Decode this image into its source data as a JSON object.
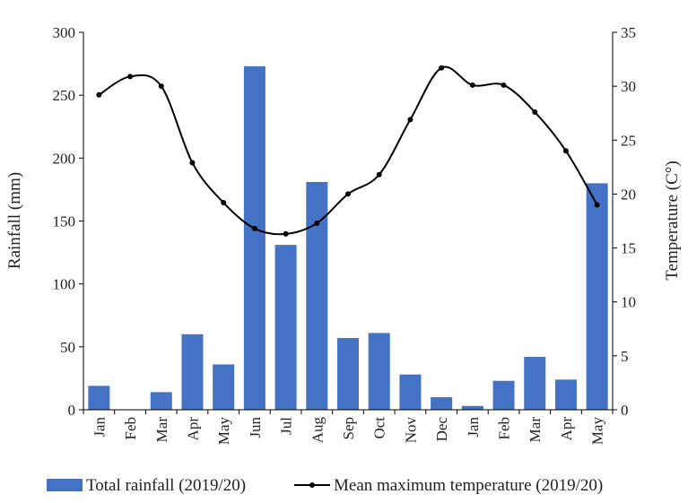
{
  "chart_data": {
    "type": "bar+line",
    "categories": [
      "Jan",
      "Feb",
      "Mar",
      "Apr",
      "May",
      "Jun",
      "Jul",
      "Aug",
      "Sep",
      "Oct",
      "Nov",
      "Dec",
      "Jan",
      "Feb",
      "Mar",
      "Apr",
      "May"
    ],
    "series": [
      {
        "name": "Total rainfall (2019/20)",
        "type": "bar",
        "axis": "left",
        "color": "#4472C4",
        "values": [
          19,
          0,
          14,
          60,
          36,
          273,
          131,
          181,
          57,
          61,
          28,
          10,
          3,
          23,
          42,
          24,
          180
        ]
      },
      {
        "name": "Mean maximum temperature (2019/20)",
        "type": "line",
        "axis": "right",
        "color": "#000000",
        "values": [
          29.2,
          30.9,
          30.0,
          22.9,
          19.2,
          16.8,
          16.3,
          17.3,
          20.0,
          21.8,
          26.9,
          31.7,
          30.1,
          30.1,
          27.6,
          24.0,
          19.0
        ]
      }
    ],
    "ylabel_left": "Rainfall (mm)",
    "ylabel_right": "Temperature (C°)",
    "ylim_left": [
      0,
      300
    ],
    "ylim_right": [
      0,
      35
    ],
    "yticks_left": [
      0,
      50,
      100,
      150,
      200,
      250,
      300
    ],
    "yticks_right": [
      0,
      5,
      10,
      15,
      20,
      25,
      30,
      35
    ],
    "grid": false,
    "legend_position": "bottom"
  }
}
